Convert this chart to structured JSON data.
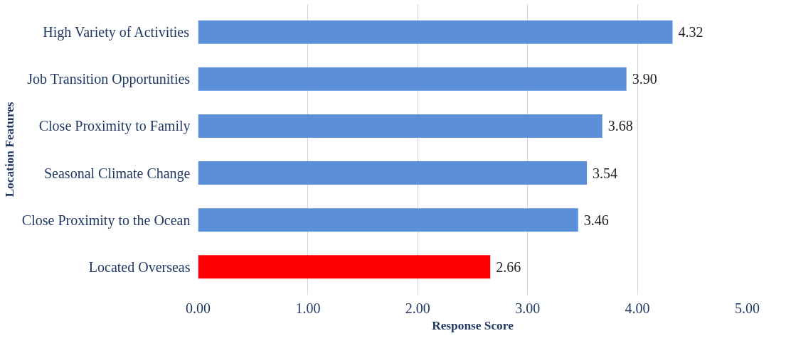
{
  "chart_data": {
    "type": "bar",
    "orientation": "horizontal",
    "xlabel": "Response Score",
    "ylabel": "Location Features",
    "categories": [
      "High Variety of Activities",
      "Job Transition Opportunities",
      "Close Proximity to Family",
      "Seasonal Climate Change",
      "Close Proximity to the Ocean",
      "Located Overseas"
    ],
    "values": [
      4.32,
      3.9,
      3.68,
      3.54,
      3.46,
      2.66
    ],
    "colors": [
      "#5b8fd8",
      "#5b8fd8",
      "#5b8fd8",
      "#5b8fd8",
      "#5b8fd8",
      "#ff0000"
    ],
    "value_labels": [
      "4.32",
      "3.90",
      "3.68",
      "3.54",
      "3.46",
      "2.66"
    ],
    "xlim": [
      0,
      5
    ],
    "xticks": [
      {
        "value": 0,
        "label": "0.00"
      },
      {
        "value": 1,
        "label": "1.00"
      },
      {
        "value": 2,
        "label": "2.00"
      },
      {
        "value": 3,
        "label": "3.00"
      },
      {
        "value": 4,
        "label": "4.00"
      },
      {
        "value": 5,
        "label": "5.00"
      }
    ],
    "grid": "x"
  }
}
